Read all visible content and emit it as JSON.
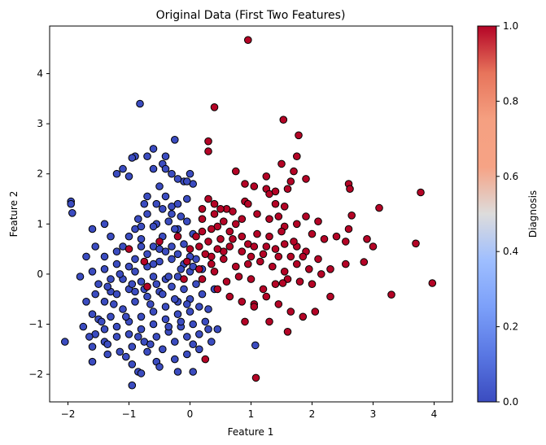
{
  "chart_data": {
    "type": "scatter",
    "title": "Original Data (First Two Features)",
    "xlabel": "Feature 1",
    "ylabel": "Feature 2",
    "xlim": [
      -2.3,
      4.3
    ],
    "ylim": [
      -2.55,
      4.95
    ],
    "xticks": [
      -2,
      -1,
      0,
      1,
      2,
      3,
      4
    ],
    "yticks": [
      -2,
      -1,
      0,
      1,
      2,
      3,
      4
    ],
    "colorbar": {
      "label": "Diagnosis",
      "min": 0.0,
      "max": 1.0,
      "ticks": [
        "0.0",
        "0.2",
        "0.4",
        "0.6",
        "0.8",
        "1.0"
      ],
      "colormap": "coolwarm",
      "low_color": "#3b4cc0",
      "high_color": "#b40426"
    },
    "grid": false,
    "series": [
      {
        "name": "0",
        "color": "#3b4cc0",
        "points": [
          [
            -0.82,
            3.4
          ],
          [
            -0.9,
            2.35
          ],
          [
            -0.95,
            2.32
          ],
          [
            -0.6,
            2.5
          ],
          [
            -0.4,
            2.35
          ],
          [
            -0.25,
            2.68
          ],
          [
            -0.45,
            2.2
          ],
          [
            -0.6,
            2.1
          ],
          [
            -0.7,
            2.35
          ],
          [
            -1.1,
            2.1
          ],
          [
            -1.2,
            2.0
          ],
          [
            -1.0,
            1.95
          ],
          [
            -0.3,
            2.0
          ],
          [
            -0.4,
            2.1
          ],
          [
            0.0,
            2.0
          ],
          [
            0.05,
            1.8
          ],
          [
            -0.1,
            1.85
          ],
          [
            -0.2,
            1.9
          ],
          [
            -1.95,
            1.45
          ],
          [
            -1.95,
            1.4
          ],
          [
            -1.93,
            1.22
          ],
          [
            -0.7,
            1.55
          ],
          [
            -0.55,
            1.4
          ],
          [
            -0.4,
            1.55
          ],
          [
            -0.5,
            1.75
          ],
          [
            -0.05,
            1.85
          ],
          [
            -0.3,
            1.35
          ],
          [
            -0.2,
            1.4
          ],
          [
            -0.05,
            1.5
          ],
          [
            -0.15,
            1.15
          ],
          [
            -0.35,
            1.05
          ],
          [
            -0.55,
            1.0
          ],
          [
            -0.7,
            1.2
          ],
          [
            -0.75,
            1.4
          ],
          [
            -0.85,
            1.1
          ],
          [
            -0.9,
            0.9
          ],
          [
            -1.4,
            1.0
          ],
          [
            -1.6,
            0.9
          ],
          [
            -1.3,
            0.75
          ],
          [
            -1.55,
            0.55
          ],
          [
            -1.7,
            0.35
          ],
          [
            -1.4,
            0.35
          ],
          [
            -1.1,
            0.55
          ],
          [
            -1.0,
            0.75
          ],
          [
            -0.8,
            0.7
          ],
          [
            -0.6,
            0.55
          ],
          [
            -0.45,
            0.75
          ],
          [
            -0.3,
            0.55
          ],
          [
            -0.1,
            0.6
          ],
          [
            0.05,
            0.8
          ],
          [
            -0.2,
            0.9
          ],
          [
            -0.5,
            0.5
          ],
          [
            -0.7,
            0.4
          ],
          [
            -0.9,
            0.3
          ],
          [
            -1.2,
            0.2
          ],
          [
            -1.4,
            0.1
          ],
          [
            -1.6,
            0.05
          ],
          [
            -1.8,
            -0.05
          ],
          [
            -1.5,
            -0.2
          ],
          [
            -1.3,
            -0.35
          ],
          [
            -1.1,
            -0.1
          ],
          [
            -0.9,
            0.05
          ],
          [
            -0.7,
            0.15
          ],
          [
            -0.5,
            0.25
          ],
          [
            -0.3,
            0.3
          ],
          [
            -0.1,
            0.2
          ],
          [
            0.1,
            0.3
          ],
          [
            0.2,
            0.1
          ],
          [
            0.0,
            0.05
          ],
          [
            -0.2,
            -0.05
          ],
          [
            -0.4,
            -0.1
          ],
          [
            -0.6,
            -0.05
          ],
          [
            -0.8,
            -0.15
          ],
          [
            -1.0,
            -0.3
          ],
          [
            -1.2,
            -0.4
          ],
          [
            -1.4,
            -0.55
          ],
          [
            -1.7,
            -0.55
          ],
          [
            -1.6,
            -0.8
          ],
          [
            -1.5,
            -0.9
          ],
          [
            -1.3,
            -0.85
          ],
          [
            -1.1,
            -0.7
          ],
          [
            -0.9,
            -0.55
          ],
          [
            -0.7,
            -0.45
          ],
          [
            -0.5,
            -0.35
          ],
          [
            -0.3,
            -0.25
          ],
          [
            -0.1,
            -0.3
          ],
          [
            0.1,
            -0.2
          ],
          [
            0.2,
            -0.4
          ],
          [
            0.0,
            -0.5
          ],
          [
            -0.2,
            -0.55
          ],
          [
            -0.4,
            -0.65
          ],
          [
            -0.6,
            -0.75
          ],
          [
            -0.8,
            -0.85
          ],
          [
            -1.0,
            -0.95
          ],
          [
            -1.2,
            -1.05
          ],
          [
            -1.4,
            -1.1
          ],
          [
            -1.55,
            -1.2
          ],
          [
            -1.6,
            -1.45
          ],
          [
            -1.4,
            -1.35
          ],
          [
            -1.2,
            -1.25
          ],
          [
            -1.0,
            -1.2
          ],
          [
            -0.8,
            -1.1
          ],
          [
            -0.6,
            -1.0
          ],
          [
            -0.4,
            -0.9
          ],
          [
            -0.2,
            -0.8
          ],
          [
            0.0,
            -0.75
          ],
          [
            0.15,
            -0.65
          ],
          [
            0.3,
            -0.7
          ],
          [
            0.25,
            -0.95
          ],
          [
            0.05,
            -1.0
          ],
          [
            -0.15,
            -1.05
          ],
          [
            -0.35,
            -1.15
          ],
          [
            -0.55,
            -1.25
          ],
          [
            -0.75,
            -1.35
          ],
          [
            -0.95,
            -1.45
          ],
          [
            -1.15,
            -1.55
          ],
          [
            -1.35,
            -1.6
          ],
          [
            -1.6,
            -1.75
          ],
          [
            -2.05,
            -1.35
          ],
          [
            -1.05,
            -1.65
          ],
          [
            -0.85,
            -1.95
          ],
          [
            -0.8,
            -1.98
          ],
          [
            -0.95,
            -2.22
          ],
          [
            -0.55,
            -1.75
          ],
          [
            -0.45,
            -1.5
          ],
          [
            -0.25,
            -1.35
          ],
          [
            -0.05,
            -1.25
          ],
          [
            0.15,
            -1.2
          ],
          [
            0.3,
            -1.1
          ],
          [
            0.45,
            -1.1
          ],
          [
            0.35,
            -1.35
          ],
          [
            0.15,
            -1.5
          ],
          [
            -0.05,
            -1.6
          ],
          [
            -0.25,
            -1.7
          ],
          [
            0.05,
            -1.95
          ],
          [
            -0.2,
            -1.95
          ],
          [
            1.07,
            -1.42
          ],
          [
            0.4,
            -0.3
          ],
          [
            -1.3,
            -0.1
          ],
          [
            -0.9,
            -0.35
          ],
          [
            -0.65,
            -0.6
          ],
          [
            -0.45,
            -0.4
          ],
          [
            -0.25,
            -0.5
          ],
          [
            -0.05,
            -0.6
          ],
          [
            -1.25,
            -0.6
          ],
          [
            -1.05,
            -0.85
          ],
          [
            -0.85,
            -1.25
          ],
          [
            -0.65,
            -1.4
          ],
          [
            -0.35,
            -1.05
          ],
          [
            -0.15,
            -0.95
          ],
          [
            0.05,
            -1.4
          ],
          [
            -1.45,
            -0.95
          ],
          [
            -1.35,
            -1.4
          ],
          [
            -0.95,
            -1.8
          ],
          [
            -0.7,
            -1.55
          ],
          [
            -0.5,
            -1.85
          ],
          [
            -1.15,
            0.0
          ],
          [
            -0.95,
            -0.2
          ],
          [
            -0.75,
            -0.3
          ],
          [
            -0.55,
            -0.2
          ],
          [
            -0.35,
            -0.05
          ],
          [
            -0.15,
            0.1
          ],
          [
            0.05,
            0.15
          ],
          [
            -1.0,
            0.15
          ],
          [
            -0.8,
            0.55
          ],
          [
            -0.6,
            0.2
          ],
          [
            -0.4,
            0.45
          ],
          [
            -0.2,
            0.4
          ],
          [
            0.0,
            0.35
          ],
          [
            -1.2,
            0.45
          ],
          [
            -1.35,
            -0.25
          ],
          [
            -1.55,
            -0.4
          ],
          [
            -1.75,
            -1.05
          ],
          [
            -1.65,
            -1.25
          ],
          [
            -0.3,
            1.2
          ],
          [
            -0.45,
            1.3
          ],
          [
            -0.6,
            0.95
          ],
          [
            -0.8,
            0.95
          ],
          [
            -0.25,
            0.9
          ],
          [
            -0.05,
            1.05
          ]
        ]
      },
      {
        "name": "1",
        "color": "#b40426",
        "points": [
          [
            0.95,
            4.67
          ],
          [
            0.4,
            3.33
          ],
          [
            1.53,
            3.08
          ],
          [
            1.78,
            2.77
          ],
          [
            0.3,
            2.65
          ],
          [
            0.3,
            2.45
          ],
          [
            1.75,
            2.35
          ],
          [
            1.5,
            2.2
          ],
          [
            1.7,
            2.05
          ],
          [
            1.65,
            1.85
          ],
          [
            0.75,
            2.05
          ],
          [
            0.9,
            1.8
          ],
          [
            1.05,
            1.75
          ],
          [
            1.25,
            1.95
          ],
          [
            1.6,
            1.7
          ],
          [
            1.9,
            1.9
          ],
          [
            2.6,
            1.8
          ],
          [
            2.62,
            1.7
          ],
          [
            3.78,
            1.63
          ],
          [
            3.1,
            1.32
          ],
          [
            2.65,
            1.17
          ],
          [
            1.25,
            1.7
          ],
          [
            1.3,
            1.6
          ],
          [
            1.4,
            1.65
          ],
          [
            0.9,
            1.45
          ],
          [
            0.95,
            1.4
          ],
          [
            0.6,
            1.3
          ],
          [
            0.3,
            1.5
          ],
          [
            0.4,
            1.4
          ],
          [
            0.2,
            1.3
          ],
          [
            0.85,
            1.1
          ],
          [
            0.75,
            1.0
          ],
          [
            0.55,
            1.05
          ],
          [
            0.45,
            0.95
          ],
          [
            0.35,
            0.9
          ],
          [
            0.2,
            0.85
          ],
          [
            1.1,
            1.2
          ],
          [
            1.3,
            1.1
          ],
          [
            1.45,
            1.15
          ],
          [
            1.55,
            0.95
          ],
          [
            1.75,
            1.0
          ],
          [
            1.9,
            1.15
          ],
          [
            2.1,
            1.05
          ],
          [
            2.0,
            0.8
          ],
          [
            2.2,
            0.7
          ],
          [
            2.4,
            0.75
          ],
          [
            2.55,
            0.65
          ],
          [
            2.6,
            0.9
          ],
          [
            2.9,
            0.7
          ],
          [
            3.0,
            0.55
          ],
          [
            3.7,
            0.61
          ],
          [
            2.85,
            0.24
          ],
          [
            2.55,
            0.2
          ],
          [
            2.3,
            0.1
          ],
          [
            2.1,
            0.3
          ],
          [
            1.9,
            0.45
          ],
          [
            1.75,
            0.55
          ],
          [
            1.55,
            0.6
          ],
          [
            1.4,
            0.5
          ],
          [
            1.2,
            0.4
          ],
          [
            1.0,
            0.35
          ],
          [
            0.85,
            0.45
          ],
          [
            0.65,
            0.55
          ],
          [
            0.5,
            0.7
          ],
          [
            0.3,
            0.65
          ],
          [
            0.15,
            0.55
          ],
          [
            0.0,
            0.5
          ],
          [
            -0.05,
            0.25
          ],
          [
            0.15,
            0.1
          ],
          [
            0.35,
            0.2
          ],
          [
            0.55,
            0.3
          ],
          [
            0.75,
            0.15
          ],
          [
            0.95,
            0.2
          ],
          [
            1.15,
            0.25
          ],
          [
            1.35,
            0.15
          ],
          [
            1.55,
            0.05
          ],
          [
            1.75,
            0.2
          ],
          [
            1.95,
            0.1
          ],
          [
            2.15,
            0.0
          ],
          [
            2.0,
            -0.2
          ],
          [
            1.8,
            -0.15
          ],
          [
            1.6,
            -0.1
          ],
          [
            1.4,
            -0.2
          ],
          [
            1.2,
            -0.3
          ],
          [
            1.0,
            -0.1
          ],
          [
            0.8,
            -0.05
          ],
          [
            0.6,
            -0.15
          ],
          [
            0.4,
            0.05
          ],
          [
            0.2,
            -0.1
          ],
          [
            0.45,
            -0.3
          ],
          [
            0.65,
            -0.45
          ],
          [
            0.85,
            -0.55
          ],
          [
            1.05,
            -0.6
          ],
          [
            1.25,
            -0.45
          ],
          [
            1.45,
            -0.6
          ],
          [
            1.65,
            -0.75
          ],
          [
            1.85,
            -0.85
          ],
          [
            2.05,
            -0.75
          ],
          [
            2.3,
            -0.45
          ],
          [
            1.52,
            -0.18
          ],
          [
            1.3,
            -0.95
          ],
          [
            1.6,
            -1.15
          ],
          [
            0.9,
            -0.95
          ],
          [
            1.05,
            -0.65
          ],
          [
            0.25,
            -1.7
          ],
          [
            1.08,
            -2.07
          ],
          [
            3.97,
            -0.18
          ],
          [
            3.3,
            -0.41
          ],
          [
            0.35,
            0.35
          ],
          [
            0.55,
            0.45
          ],
          [
            0.7,
            0.7
          ],
          [
            0.95,
            0.6
          ],
          [
            1.1,
            0.8
          ],
          [
            1.3,
            0.75
          ],
          [
            1.5,
            0.85
          ],
          [
            1.7,
            0.65
          ],
          [
            1.85,
            0.35
          ],
          [
            1.65,
            0.35
          ],
          [
            1.45,
            0.35
          ],
          [
            1.25,
            0.55
          ],
          [
            1.05,
            0.55
          ],
          [
            0.85,
            0.75
          ],
          [
            0.65,
            0.85
          ],
          [
            0.45,
            0.5
          ],
          [
            0.25,
            0.4
          ],
          [
            0.1,
            0.75
          ],
          [
            -0.2,
            0.75
          ],
          [
            -0.5,
            0.65
          ],
          [
            -0.75,
            0.25
          ],
          [
            -1.0,
            0.5
          ],
          [
            -0.7,
            -0.25
          ],
          [
            -0.1,
            -0.1
          ],
          [
            0.2,
            1.1
          ],
          [
            0.4,
            1.2
          ],
          [
            0.5,
            1.3
          ],
          [
            0.7,
            1.25
          ],
          [
            1.55,
            1.35
          ],
          [
            1.4,
            1.4
          ]
        ]
      }
    ]
  }
}
